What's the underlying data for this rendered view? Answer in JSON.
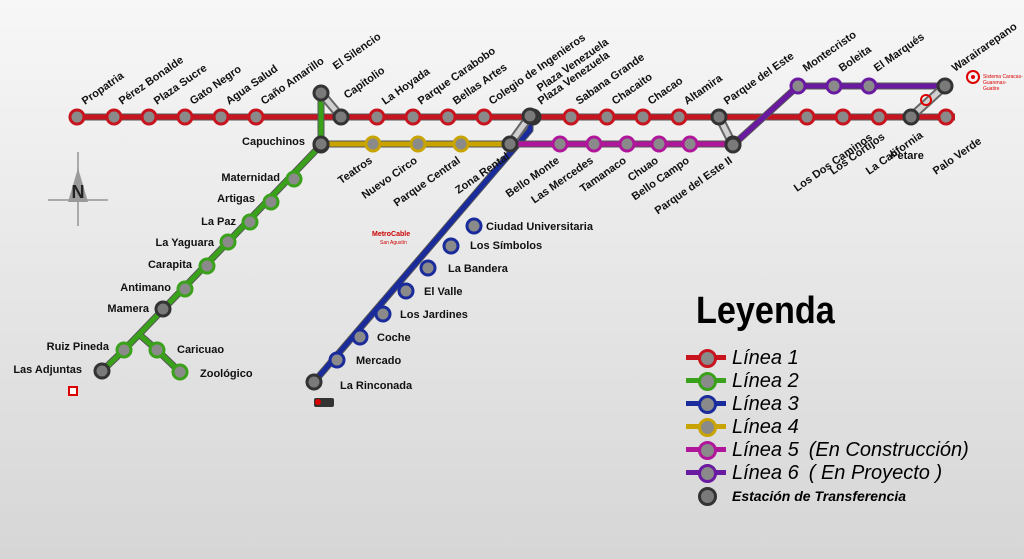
{
  "lines": {
    "l1": {
      "color": "#c8141e",
      "stations": [
        "Propatria",
        "Pérez Bonalde",
        "Plaza Sucre",
        "Gato Negro",
        "Agua Salud",
        "Caño Amarillo",
        "Capitolio",
        "La Hoyada",
        "Parque Carabobo",
        "Bellas Artes",
        "Colegio de Ingenieros",
        "Plaza Venezuela",
        "Sabana Grande",
        "Chacaito",
        "Chacao",
        "Altamira",
        "Parque del Este",
        "Los Dos Caminos",
        "Los Cortijos",
        "La California",
        "Petare",
        "Palo Verde"
      ]
    },
    "l2": {
      "color": "#3aa21a",
      "stations": [
        "El Silencio",
        "Capuchinos",
        "Maternidad",
        "Artigas",
        "La Paz",
        "La Yaguara",
        "Carapita",
        "Antimano",
        "Mamera",
        "Ruiz Pineda",
        "Las Adjuntas",
        "Caricuao",
        "Zoológico"
      ]
    },
    "l3": {
      "color": "#1a2c9c",
      "stations": [
        "Plaza Venezuela",
        "Ciudad Universitaria",
        "Los Símbolos",
        "La Bandera",
        "El Valle",
        "Los Jardines",
        "Coche",
        "Mercado",
        "La Rinconada"
      ]
    },
    "l4": {
      "color": "#c9a400",
      "stations": [
        "Capuchinos",
        "Teatros",
        "Nuevo Circo",
        "Parque Central",
        "Zona Rental"
      ]
    },
    "l5": {
      "color": "#b0169a",
      "stations": [
        "Zona Rental",
        "Bello Monte",
        "Las Mercedes",
        "Tamanaco",
        "Chuao",
        "Bello Campo",
        "Parque del Este II"
      ]
    },
    "l6": {
      "color": "#6a1aa0",
      "stations": [
        "Parque del Este II",
        "Montecristo",
        "Boleita",
        "El Marqués",
        "Warairarepano"
      ]
    }
  },
  "transfer_color": "#7a7a7a",
  "brands": {
    "metrocable_title": "MetroCable",
    "metrocable_sub": "San Agustín",
    "sistema_text": "Sistema Caracas-Guarenas-Guatire"
  },
  "compass": {
    "letter": "N"
  },
  "legend": {
    "title": "Leyenda",
    "items": [
      {
        "line": "Línea 1",
        "note": "",
        "color": "#c8141e"
      },
      {
        "line": "Línea 2",
        "note": "",
        "color": "#3aa21a"
      },
      {
        "line": "Línea 3",
        "note": "",
        "color": "#1a2c9c"
      },
      {
        "line": "Línea 4",
        "note": "",
        "color": "#c9a400"
      },
      {
        "line": "Línea 5",
        "note": "(En Construcción)",
        "color": "#b0169a"
      },
      {
        "line": "Línea 6",
        "note": "( En Proyecto )",
        "color": "#6a1aa0"
      }
    ],
    "transfer_label": "Estación de Transferencia"
  }
}
